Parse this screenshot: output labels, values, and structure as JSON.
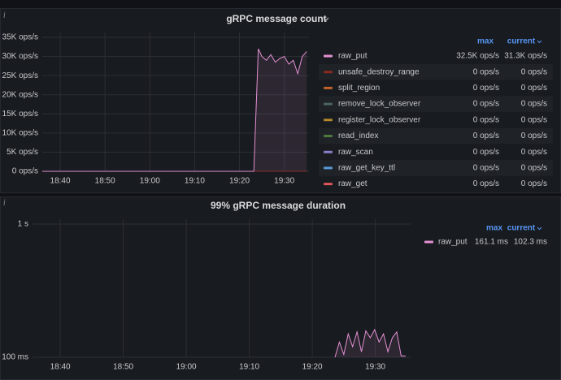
{
  "chart_data": [
    {
      "type": "line",
      "title": "gRPC message count",
      "xlim": [
        1116,
        1175.5
      ],
      "xticks": [
        {
          "value": 1120,
          "label": "18:40"
        },
        {
          "value": 1130,
          "label": "18:50"
        },
        {
          "value": 1140,
          "label": "19:00"
        },
        {
          "value": 1150,
          "label": "19:10"
        },
        {
          "value": 1160,
          "label": "19:20"
        },
        {
          "value": 1170,
          "label": "19:30"
        }
      ],
      "ylim": [
        0,
        35000
      ],
      "yticks": [
        {
          "value": 0,
          "label": "0 ops/s"
        },
        {
          "value": 5000,
          "label": "5K ops/s"
        },
        {
          "value": 10000,
          "label": "10K ops/s"
        },
        {
          "value": 15000,
          "label": "15K ops/s"
        },
        {
          "value": 20000,
          "label": "20K ops/s"
        },
        {
          "value": 25000,
          "label": "25K ops/s"
        },
        {
          "value": 30000,
          "label": "30K ops/s"
        },
        {
          "value": 35000,
          "label": "35K ops/s"
        }
      ],
      "grid": true,
      "legend_columns": [
        "max",
        "current"
      ],
      "x": [
        1116,
        1120,
        1130,
        1140,
        1150,
        1160,
        1163.2,
        1164.2,
        1165,
        1166,
        1167,
        1168,
        1169,
        1170,
        1171,
        1172,
        1173,
        1174,
        1175
      ],
      "series": [
        {
          "name": "raw_put",
          "color": "#e591d4",
          "fill_area": true,
          "values": [
            0,
            0,
            0,
            0,
            0,
            0,
            0,
            32000,
            30000,
            29000,
            30500,
            28500,
            29500,
            30000,
            28000,
            29000,
            25500,
            30000,
            31300
          ],
          "max": {
            "value": 32500,
            "label": "32.5K ops/s"
          },
          "current": {
            "value": 31300,
            "label": "31.3K ops/s"
          }
        },
        {
          "name": "unsafe_destroy_range",
          "color": "#8a2a1c",
          "values": [
            0,
            0,
            0,
            0,
            0,
            0,
            0,
            0,
            0,
            0,
            0,
            0,
            0,
            0,
            0,
            0,
            0,
            0,
            0
          ],
          "max": {
            "value": 0,
            "label": "0 ops/s"
          },
          "current": {
            "value": 0,
            "label": "0 ops/s"
          }
        },
        {
          "name": "split_region",
          "color": "#c0642b",
          "values": [
            0,
            0,
            0,
            0,
            0,
            0,
            0,
            0,
            0,
            0,
            0,
            0,
            0,
            0,
            0,
            0,
            0,
            0,
            0
          ],
          "max": {
            "value": 0,
            "label": "0 ops/s"
          },
          "current": {
            "value": 0,
            "label": "0 ops/s"
          }
        },
        {
          "name": "remove_lock_observer",
          "color": "#4d6464",
          "values": [
            0,
            0,
            0,
            0,
            0,
            0,
            0,
            0,
            0,
            0,
            0,
            0,
            0,
            0,
            0,
            0,
            0,
            0,
            0
          ],
          "max": {
            "value": 0,
            "label": "0 ops/s"
          },
          "current": {
            "value": 0,
            "label": "0 ops/s"
          }
        },
        {
          "name": "register_lock_observer",
          "color": "#b28a2a",
          "values": [
            0,
            0,
            0,
            0,
            0,
            0,
            0,
            0,
            0,
            0,
            0,
            0,
            0,
            0,
            0,
            0,
            0,
            0,
            0
          ],
          "max": {
            "value": 0,
            "label": "0 ops/s"
          },
          "current": {
            "value": 0,
            "label": "0 ops/s"
          }
        },
        {
          "name": "read_index",
          "color": "#4e7a3a",
          "values": [
            0,
            0,
            0,
            0,
            0,
            0,
            0,
            0,
            0,
            0,
            0,
            0,
            0,
            0,
            0,
            0,
            0,
            0,
            0
          ],
          "max": {
            "value": 0,
            "label": "0 ops/s"
          },
          "current": {
            "value": 0,
            "label": "0 ops/s"
          }
        },
        {
          "name": "raw_scan",
          "color": "#8a7cc6",
          "values": [
            0,
            0,
            0,
            0,
            0,
            0,
            0,
            0,
            0,
            0,
            0,
            0,
            0,
            0,
            0,
            0,
            0,
            0,
            0
          ],
          "max": {
            "value": 0,
            "label": "0 ops/s"
          },
          "current": {
            "value": 0,
            "label": "0 ops/s"
          }
        },
        {
          "name": "raw_get_key_ttl",
          "color": "#5a9ad8",
          "values": [
            0,
            0,
            0,
            0,
            0,
            0,
            0,
            0,
            0,
            0,
            0,
            0,
            0,
            0,
            0,
            0,
            0,
            0,
            0
          ],
          "max": {
            "value": 0,
            "label": "0 ops/s"
          },
          "current": {
            "value": 0,
            "label": "0 ops/s"
          }
        },
        {
          "name": "raw_get",
          "color": "#e0555a",
          "values": [
            0,
            0,
            0,
            0,
            0,
            0,
            0,
            0,
            0,
            0,
            0,
            0,
            0,
            0,
            0,
            0,
            0,
            0,
            0
          ],
          "max": {
            "value": 0,
            "label": "0 ops/s"
          },
          "current": {
            "value": 0,
            "label": "0 ops/s"
          }
        }
      ]
    },
    {
      "type": "line",
      "title": "99% gRPC message duration",
      "xlim": [
        1115.6,
        1175.6
      ],
      "xticks": [
        {
          "value": 1120,
          "label": "18:40"
        },
        {
          "value": 1130,
          "label": "18:50"
        },
        {
          "value": 1140,
          "label": "19:00"
        },
        {
          "value": 1150,
          "label": "19:10"
        },
        {
          "value": 1160,
          "label": "19:20"
        },
        {
          "value": 1170,
          "label": "19:30"
        }
      ],
      "ylim": [
        100,
        1000
      ],
      "log_y": true,
      "yticks": [
        {
          "value": 100,
          "label": "100 ms"
        },
        {
          "value": 1000,
          "label": "1 s"
        }
      ],
      "grid": true,
      "legend_columns": [
        "max",
        "current"
      ],
      "x": [
        1163.6,
        1164.3,
        1165,
        1165.7,
        1166.4,
        1167.1,
        1167.8,
        1168.5,
        1169.2,
        1169.9,
        1170.6,
        1171.3,
        1172,
        1172.7,
        1173.4,
        1174.1,
        1174.8
      ],
      "series": [
        {
          "name": "raw_put",
          "color": "#e591d4",
          "fill_area": true,
          "values": [
            100,
            130,
            105,
            150,
            120,
            155,
            110,
            158,
            140,
            161.1,
            130,
            150,
            110,
            140,
            155,
            102.3,
            102.3
          ],
          "max": {
            "value": 161.1,
            "label": "161.1 ms"
          },
          "current": {
            "value": 102.3,
            "label": "102.3 ms"
          }
        }
      ]
    }
  ]
}
